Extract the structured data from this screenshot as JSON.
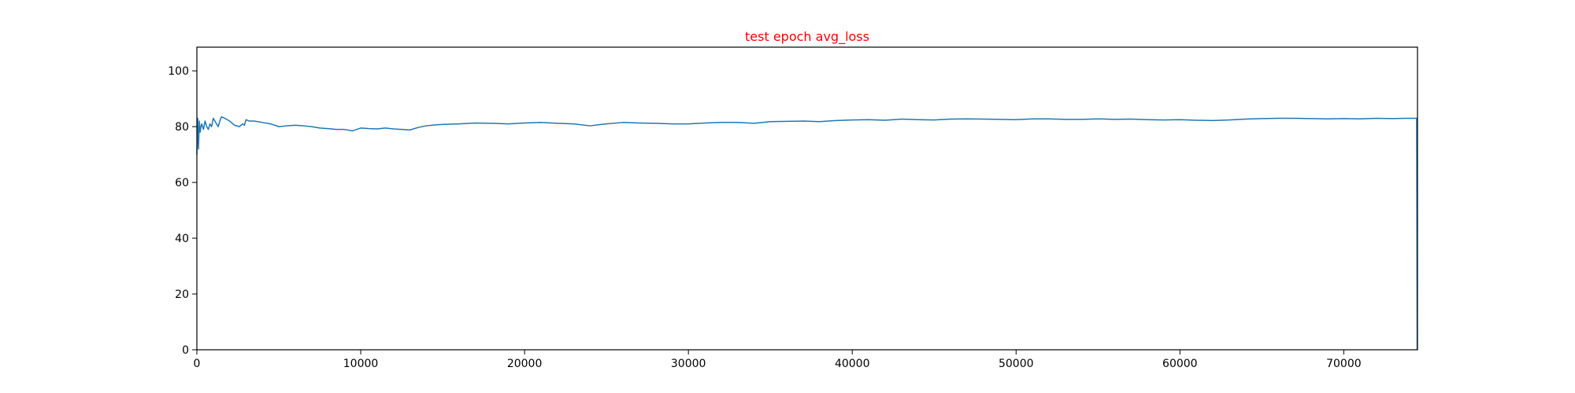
{
  "chart_data": {
    "type": "line",
    "title": "test epoch avg_loss",
    "title_color": "#ff0000",
    "xlabel": "",
    "ylabel": "",
    "xlim": [
      0,
      74500
    ],
    "ylim": [
      0,
      108.5
    ],
    "xticks": [
      0,
      10000,
      20000,
      30000,
      40000,
      50000,
      60000,
      70000
    ],
    "yticks": [
      0,
      20,
      40,
      60,
      80,
      100
    ],
    "grid": false,
    "series": [
      {
        "color": "#1f77b4",
        "x": [
          0,
          50,
          100,
          150,
          200,
          250,
          300,
          400,
          500,
          600,
          700,
          800,
          900,
          1000,
          1100,
          1200,
          1300,
          1400,
          1500,
          1700,
          2000,
          2300,
          2600,
          2800,
          2900,
          3000,
          3200,
          3500,
          4000,
          4500,
          5000,
          5500,
          6000,
          6500,
          7000,
          7500,
          8000,
          8500,
          9000,
          9500,
          10000,
          10500,
          11000,
          11500,
          12000,
          12500,
          13000,
          13500,
          14000,
          14500,
          15000,
          16000,
          17000,
          18000,
          19000,
          20000,
          21000,
          22000,
          23000,
          24000,
          25000,
          26000,
          27000,
          28000,
          29000,
          30000,
          31000,
          32000,
          33000,
          34000,
          35000,
          36000,
          37000,
          38000,
          39000,
          40000,
          41000,
          42000,
          43000,
          44000,
          45000,
          46000,
          47000,
          48000,
          49000,
          50000,
          51000,
          52000,
          53000,
          54000,
          55000,
          56000,
          57000,
          58000,
          59000,
          60000,
          61000,
          62000,
          63000,
          64000,
          65000,
          66000,
          67000,
          68000,
          69000,
          70000,
          71000,
          72000,
          73000,
          74000,
          74450,
          74480
        ],
        "y": [
          70,
          83,
          72,
          82,
          78,
          80,
          81,
          79,
          82,
          80,
          79,
          81,
          80,
          83,
          82,
          81,
          80,
          82,
          83.5,
          83,
          82,
          80.5,
          80,
          81,
          80.5,
          82.5,
          82,
          82,
          81.5,
          81,
          80,
          80.3,
          80.5,
          80.3,
          80,
          79.5,
          79.3,
          79,
          79,
          78.5,
          79.5,
          79.3,
          79.2,
          79.5,
          79.2,
          79,
          78.8,
          79.7,
          80.3,
          80.6,
          80.8,
          81,
          81.3,
          81.2,
          81,
          81.3,
          81.5,
          81.2,
          81,
          80.3,
          81,
          81.5,
          81.3,
          81.2,
          81,
          81,
          81.3,
          81.5,
          81.5,
          81.2,
          81.8,
          81.9,
          82,
          81.8,
          82.2,
          82.4,
          82.5,
          82.3,
          82.7,
          82.5,
          82.4,
          82.7,
          82.8,
          82.7,
          82.6,
          82.5,
          82.8,
          82.8,
          82.6,
          82.6,
          82.8,
          82.6,
          82.7,
          82.5,
          82.4,
          82.5,
          82.3,
          82.2,
          82.4,
          82.7,
          82.9,
          83,
          83,
          82.9,
          82.8,
          82.9,
          82.8,
          83,
          82.9,
          83,
          83,
          0
        ]
      }
    ]
  }
}
